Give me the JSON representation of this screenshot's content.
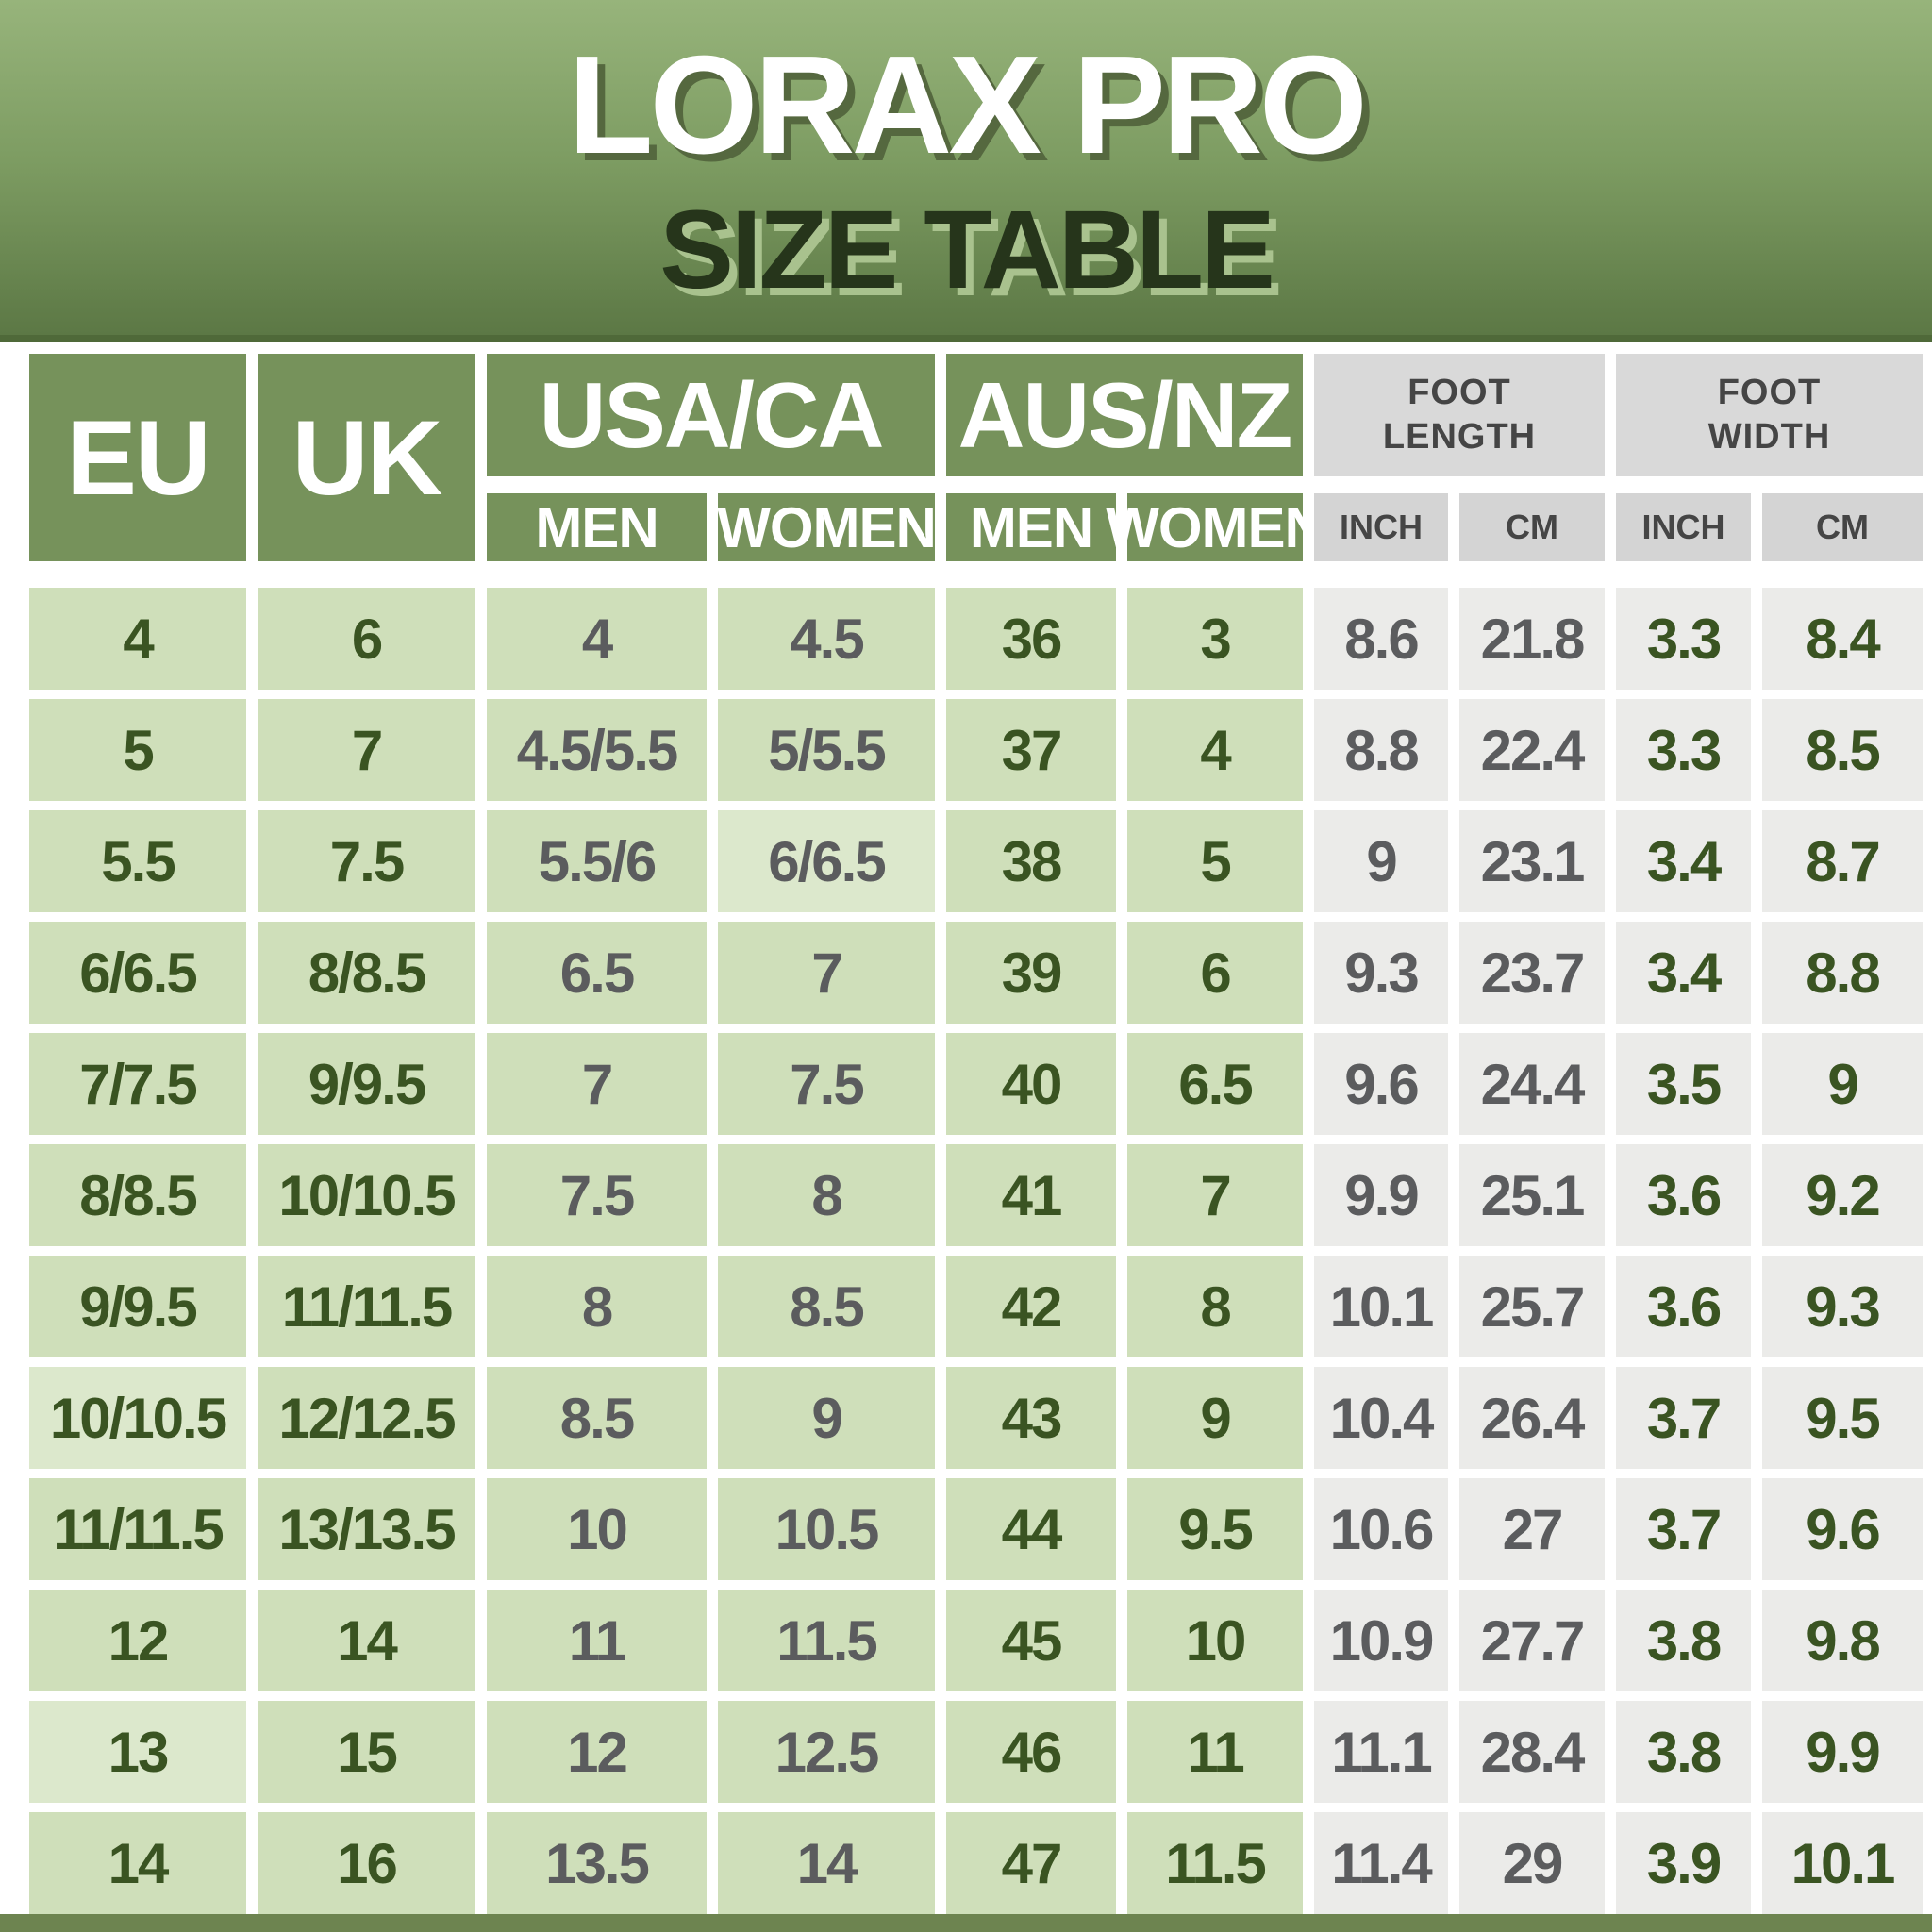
{
  "title": {
    "main": "LORAX PRO",
    "subtitle": "SIZE TABLE"
  },
  "header": {
    "usa_ca": "USA/CA",
    "aus_nz": "AUS/NZ",
    "eu": "EU",
    "uk": "UK",
    "foot_length": "FOOT\nLENGTH",
    "foot_width": "FOOT\nWIDTH",
    "men": "MEN",
    "women": "WOMEN",
    "inch": "INCH",
    "cm": "CM"
  },
  "columns": [
    "USA/CA MEN",
    "USA/CA WOMEN",
    "AUS/NZ MEN",
    "AUS/NZ WOMEN",
    "EU",
    "UK",
    "FOOT LENGTH INCH",
    "FOOT LENGTH CM",
    "FOOT WIDTH INCH",
    "FOOT WIDTH CM"
  ],
  "rows": [
    [
      "4",
      "6",
      "4",
      "4.5",
      "36",
      "3",
      "8.6",
      "21.8",
      "3.3",
      "8.4"
    ],
    [
      "5",
      "7",
      "4.5/5.5",
      "5/5.5",
      "37",
      "4",
      "8.8",
      "22.4",
      "3.3",
      "8.5"
    ],
    [
      "5.5",
      "7.5",
      "5.5/6",
      "6/6.5",
      "38",
      "5",
      "9",
      "23.1",
      "3.4",
      "8.7"
    ],
    [
      "6/6.5",
      "8/8.5",
      "6.5",
      "7",
      "39",
      "6",
      "9.3",
      "23.7",
      "3.4",
      "8.8"
    ],
    [
      "7/7.5",
      "9/9.5",
      "7",
      "7.5",
      "40",
      "6.5",
      "9.6",
      "24.4",
      "3.5",
      "9"
    ],
    [
      "8/8.5",
      "10/10.5",
      "7.5",
      "8",
      "41",
      "7",
      "9.9",
      "25.1",
      "3.6",
      "9.2"
    ],
    [
      "9/9.5",
      "11/11.5",
      "8",
      "8.5",
      "42",
      "8",
      "10.1",
      "25.7",
      "3.6",
      "9.3"
    ],
    [
      "10/10.5",
      "12/12.5",
      "8.5",
      "9",
      "43",
      "9",
      "10.4",
      "26.4",
      "3.7",
      "9.5"
    ],
    [
      "11/11.5",
      "13/13.5",
      "10",
      "10.5",
      "44",
      "9.5",
      "10.6",
      "27",
      "3.7",
      "9.6"
    ],
    [
      "12",
      "14",
      "11",
      "11.5",
      "45",
      "10",
      "10.9",
      "27.7",
      "3.8",
      "9.8"
    ],
    [
      "13",
      "15",
      "12",
      "12.5",
      "46",
      "11",
      "11.1",
      "28.4",
      "3.8",
      "9.9"
    ],
    [
      "14",
      "16",
      "13.5",
      "14",
      "47",
      "11.5",
      "11.4",
      "29",
      "3.9",
      "10.1"
    ]
  ],
  "colors": {
    "header_green": "#76925b",
    "cell_green": "#cfdfba",
    "cell_green_light": "#dce8cc",
    "header_gray": "#d9d9d9",
    "subheader_gray": "#d4d4d4",
    "cell_gray": "#ebebe9",
    "text_dark_green": "#3a5422",
    "text_gray": "#5b5c5e",
    "title_gradient_top": "#97b47b",
    "title_gradient_bottom": "#5c7845",
    "bottom_bar": "#6d8450"
  }
}
